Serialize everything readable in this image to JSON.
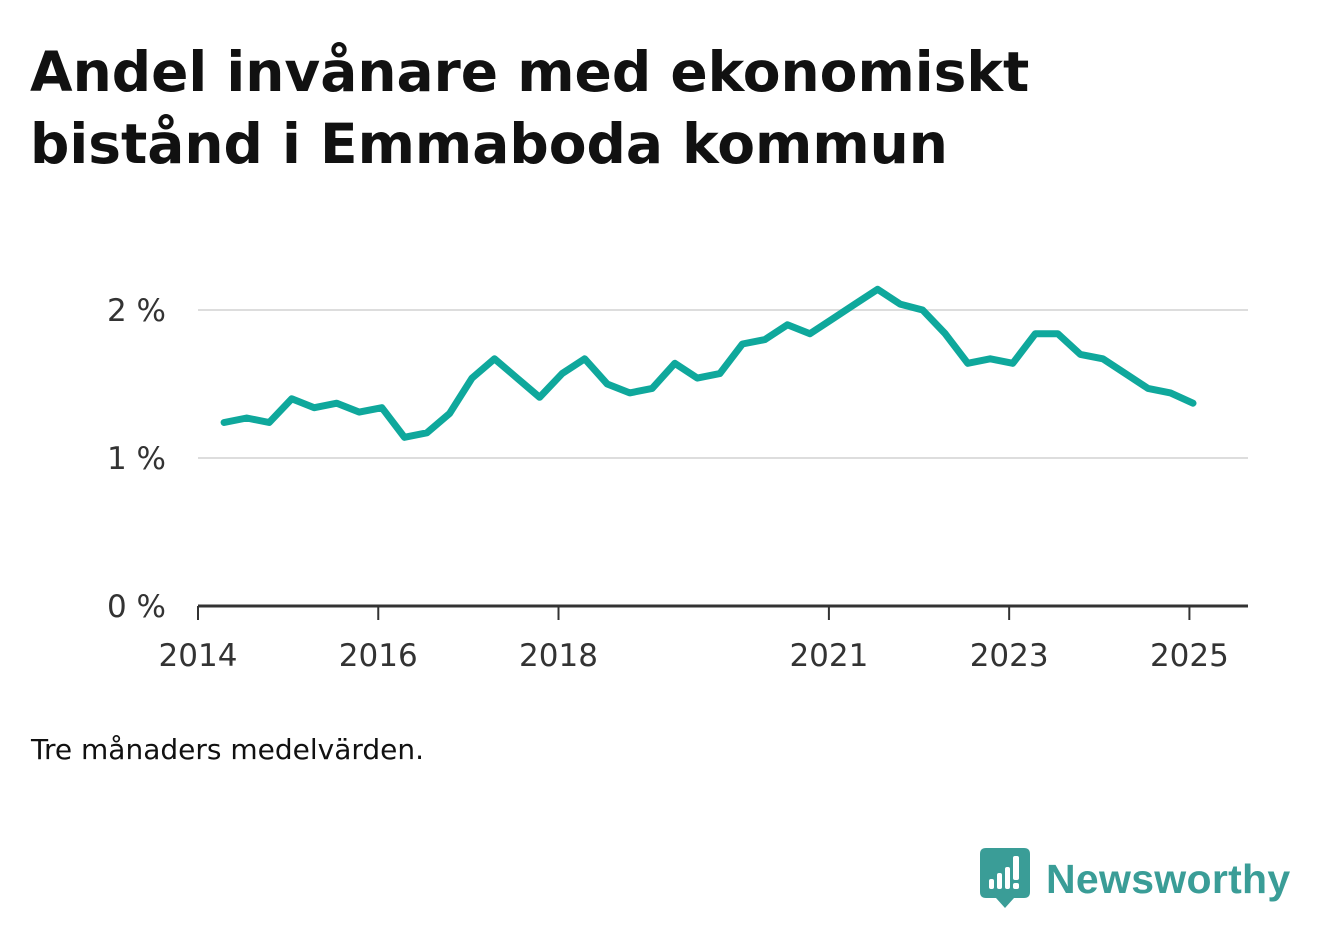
{
  "title": "Andel invånare med ekonomiskt bistånd i Emmaboda kommun",
  "note": "Tre månaders medelvärden.",
  "brand": {
    "name": "Newsworthy",
    "icon": "bar-chart-speech-bubble-icon",
    "color": "#3a9d97"
  },
  "chart_data": {
    "type": "line",
    "color": "#0fa89c",
    "grid": true,
    "ylim": [
      0,
      2.2
    ],
    "y_ticks": [
      {
        "value": 0,
        "label": "0 %"
      },
      {
        "value": 1,
        "label": "1 %"
      },
      {
        "value": 2,
        "label": "2 %"
      }
    ],
    "x_ticks": [
      {
        "value": 2014.0,
        "label": "2014"
      },
      {
        "value": 2016.0,
        "label": "2016"
      },
      {
        "value": 2018.0,
        "label": "2018"
      },
      {
        "value": 2021.0,
        "label": "2021"
      },
      {
        "value": 2023.0,
        "label": "2023"
      },
      {
        "value": 2025.0,
        "label": "2025"
      }
    ],
    "xlim": [
      2014.0,
      2025.65
    ],
    "series": [
      {
        "x": [
          2014.29,
          2014.54,
          2014.79,
          2015.04,
          2015.29,
          2015.54,
          2015.79,
          2016.04,
          2016.29,
          2016.54,
          2016.79,
          2017.04,
          2017.29,
          2017.54,
          2017.79,
          2018.04,
          2018.29,
          2018.54,
          2018.79,
          2019.04,
          2019.29,
          2019.54,
          2019.79,
          2020.04,
          2020.29,
          2020.54,
          2020.79,
          2021.04,
          2021.29,
          2021.54,
          2021.79,
          2022.04,
          2022.29,
          2022.54,
          2022.79,
          2023.04,
          2023.29,
          2023.54,
          2023.79,
          2024.04,
          2024.29,
          2024.54,
          2024.79,
          2025.04
        ],
        "values": [
          1.24,
          1.27,
          1.24,
          1.4,
          1.34,
          1.37,
          1.31,
          1.34,
          1.14,
          1.17,
          1.3,
          1.54,
          1.67,
          1.54,
          1.41,
          1.57,
          1.67,
          1.5,
          1.44,
          1.47,
          1.64,
          1.54,
          1.57,
          1.77,
          1.8,
          1.9,
          1.84,
          1.94,
          2.04,
          2.14,
          2.04,
          2.0,
          1.84,
          1.64,
          1.67,
          1.64,
          1.84,
          1.84,
          1.7,
          1.67,
          1.57,
          1.47,
          1.44,
          1.37
        ]
      }
    ]
  }
}
